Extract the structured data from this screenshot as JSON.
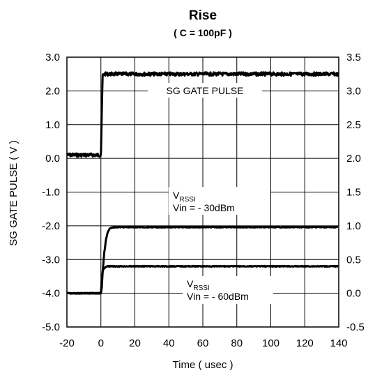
{
  "chart_data": {
    "type": "line",
    "title": "Rise",
    "subtitle": "( C = 100pF )",
    "xlabel": "Time ( usec )",
    "ylabel": "SG GATE PULSE ( V )",
    "xlim": [
      -20,
      140
    ],
    "ylim": [
      -5,
      3
    ],
    "y2lim": [
      -0.5,
      3.5
    ],
    "x_ticks": [
      "-20",
      "0",
      "20",
      "40",
      "60",
      "80",
      "100",
      "120",
      "140"
    ],
    "y_ticks": [
      "3.0",
      "2.0",
      "1.0",
      "0.0",
      "-1.0",
      "-2.0",
      "-3.0",
      "-4.0",
      "-5.0"
    ],
    "y2_ticks": [
      "3.5",
      "3.0",
      "2.5",
      "2.0",
      "1.5",
      "1.0",
      "0.5",
      "0.0",
      "-0.5"
    ],
    "grid": true,
    "series": [
      {
        "name": "SG GATE PULSE",
        "axis": "left",
        "x": [
          -20,
          -1,
          0,
          1,
          2,
          140
        ],
        "y": [
          0.1,
          0.1,
          0.1,
          2.45,
          2.5,
          2.5
        ]
      },
      {
        "name": "VRSSI Vin = - 30dBm",
        "axis": "right",
        "x": [
          -20,
          0,
          0.5,
          1,
          2,
          3,
          4,
          5,
          6,
          8,
          140
        ],
        "y": [
          0.0,
          0.0,
          0.07,
          0.3,
          0.6,
          0.8,
          0.9,
          0.95,
          0.97,
          0.98,
          0.98
        ]
      },
      {
        "name": "VRSSI Vin = - 60dBm",
        "axis": "right",
        "x": [
          -20,
          0,
          0.5,
          1,
          2,
          3,
          4,
          6,
          140
        ],
        "y": [
          0.0,
          0.0,
          0.2,
          0.33,
          0.37,
          0.39,
          0.4,
          0.4,
          0.4
        ]
      }
    ],
    "annotations": {
      "gate": "SG GATE PULSE",
      "r30_main": "V",
      "r30_sub": "RSSI",
      "r30_vin": "Vin = - 30dBm",
      "r60_main": "V",
      "r60_sub": "RSSI",
      "r60_vin": "Vin = - 60dBm"
    }
  }
}
